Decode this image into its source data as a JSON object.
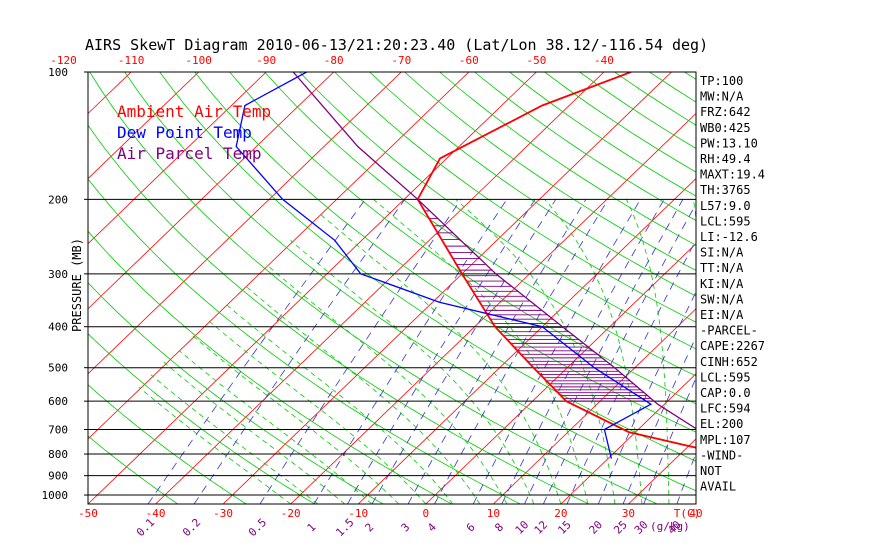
{
  "colors": {
    "temperature": "#ff0000",
    "dewpoint": "#0000ff",
    "parcel": "#800080",
    "dry_adiabat": "#00cc00",
    "moist_adiabat": "#00cc00",
    "mixing_ratio": "#3333cc",
    "isobar": "#000000",
    "cape_hatch": "#800080",
    "text": "#000000"
  },
  "chart_data": {
    "type": "line",
    "title": "AIRS SkewT Diagram 2010-06-13/21:20:23.40 (Lat/Lon 38.12/-116.54 deg)",
    "ylabel": "PRESSURE (MB)",
    "xlabel_unit": "T(C)",
    "mixing_ratio_unit": "(g/kg)",
    "y_scale": "log",
    "ylim": [
      1050,
      100
    ],
    "xlim": [
      -50,
      40
    ],
    "skew_C_per_decade": 65,
    "pressure_ticks": [
      100,
      200,
      300,
      400,
      500,
      600,
      700,
      800,
      900,
      1000
    ],
    "bottom_temp_ticks": [
      -50,
      -40,
      -30,
      -20,
      -10,
      0,
      10,
      20,
      30,
      40
    ],
    "top_temp_ticks": [
      -120,
      -110,
      -100,
      -90,
      -80,
      -70,
      -60,
      -50,
      -40
    ],
    "mixing_ratio_labels": [
      "0.1",
      "0.2",
      "0.5",
      "1",
      "1.5",
      "2",
      "3",
      "4",
      "6",
      "8",
      "10",
      "12",
      "15",
      "20",
      "25",
      "30",
      "40"
    ],
    "legend": [
      "Ambient Air Temp",
      "Dew Point Temp",
      "Air Parcel Temp"
    ],
    "legend_position": "top-left",
    "series": [
      {
        "name": "Ambient Air Temp",
        "points": [
          [
            820,
            40
          ],
          [
            710,
            19
          ],
          [
            600,
            5
          ],
          [
            500,
            -5
          ],
          [
            400,
            -17
          ],
          [
            300,
            -30
          ],
          [
            200,
            -48
          ],
          [
            160,
            -51
          ],
          [
            120,
            -44
          ],
          [
            100,
            -36
          ]
        ]
      },
      {
        "name": "Dew Point Temp",
        "points": [
          [
            820,
            20.5
          ],
          [
            700,
            15
          ],
          [
            610,
            18
          ],
          [
            500,
            4
          ],
          [
            400,
            -10
          ],
          [
            350,
            -29
          ],
          [
            300,
            -45
          ],
          [
            250,
            -54
          ],
          [
            200,
            -68
          ],
          [
            150,
            -83
          ],
          [
            120,
            -88
          ],
          [
            100,
            -84
          ]
        ]
      },
      {
        "name": "Air Parcel Temp",
        "points": [
          [
            820,
            40
          ],
          [
            610,
            19
          ],
          [
            500,
            7
          ],
          [
            400,
            -7
          ],
          [
            300,
            -25
          ],
          [
            200,
            -48
          ],
          [
            150,
            -65
          ],
          [
            100,
            -86
          ]
        ]
      }
    ],
    "cape_shading": {
      "bottom_mb": 600,
      "top_mb": 200
    }
  },
  "indices": [
    "TP:100",
    "MW:N/A",
    "FRZ:642",
    "WB0:425",
    "PW:13.10",
    "RH:49.4",
    "MAXT:19.4",
    "TH:3765",
    "L57:9.0",
    "LCL:595",
    "LI:-12.6",
    "SI:N/A",
    "TT:N/A",
    "KI:N/A",
    "SW:N/A",
    "EI:N/A",
    "-PARCEL-",
    "CAPE:2267",
    "CINH:652",
    "LCL:595",
    "CAP:0.0",
    "LFC:594",
    "EL:200",
    "MPL:107",
    "-WIND-",
    "NOT",
    "AVAIL"
  ]
}
